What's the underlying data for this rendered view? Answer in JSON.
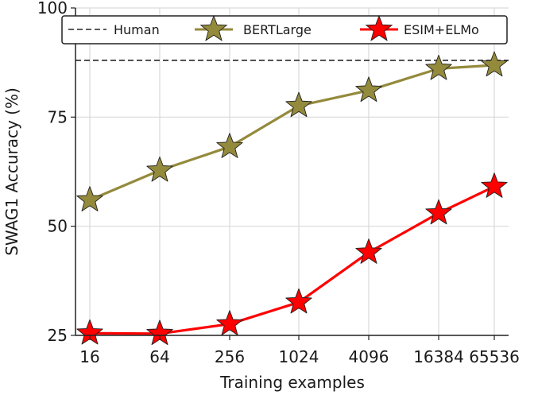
{
  "chart_data": {
    "type": "line",
    "x": [
      16,
      64,
      256,
      1024,
      4096,
      16384,
      65536
    ],
    "x_tick_labels": [
      "16",
      "64",
      "256",
      "1024",
      "4096",
      "16384",
      "65536"
    ],
    "x_scale": "log",
    "y_ticks": [
      25,
      50,
      75,
      100
    ],
    "y_tick_labels": [
      "25",
      "50",
      "75",
      "100"
    ],
    "ylim": [
      25,
      100
    ],
    "xlabel": "Training examples",
    "ylabel": "SWAG1 Accuracy (%)",
    "grid": true,
    "legend": {
      "placement": "top",
      "entries": [
        "Human",
        "BERTLarge",
        "ESIM+ELMo"
      ]
    },
    "reference_line": {
      "name": "Human",
      "value": 88,
      "style": "dashed",
      "color": "#444444"
    },
    "series": [
      {
        "name": "BERTLarge",
        "color": "#948a3c",
        "marker": "star",
        "values": [
          56,
          62.8,
          68.2,
          77.6,
          81.1,
          86.1,
          86.9
        ]
      },
      {
        "name": "ESIM+ELMo",
        "color": "#ff0000",
        "marker": "star",
        "values": [
          25.5,
          25.4,
          27.6,
          32.6,
          44.0,
          53.0,
          59.1
        ]
      }
    ]
  }
}
